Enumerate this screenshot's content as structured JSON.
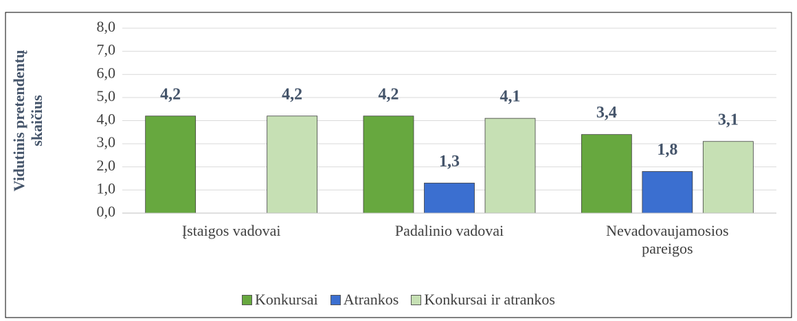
{
  "chart_data": {
    "type": "bar",
    "y_label": [
      "Vidutinis pretendentų",
      "skaičius"
    ],
    "categories": [
      "Įstaigos vadovai",
      "Padalinio vadovai",
      "Nevadovaujamosios pareigos"
    ],
    "series": [
      {
        "name": "Konkursai",
        "color": "#67a83f",
        "values": [
          4.2,
          4.2,
          3.4
        ],
        "value_labels": [
          "4,2",
          "4,2",
          "3,4"
        ]
      },
      {
        "name": "Atrankos",
        "color": "#3b6fd0",
        "values": [
          null,
          1.3,
          1.8
        ],
        "value_labels": [
          null,
          "1,3",
          "1,8"
        ]
      },
      {
        "name": "Konkursai ir atrankos",
        "color": "#c6e0b4",
        "values": [
          4.2,
          4.1,
          3.1
        ],
        "value_labels": [
          "4,2",
          "4,1",
          "3,1"
        ]
      }
    ],
    "ylim": [
      0,
      8
    ],
    "yticks": [
      {
        "value": 0,
        "label": "0,0"
      },
      {
        "value": 1,
        "label": "1,0"
      },
      {
        "value": 2,
        "label": "2,0"
      },
      {
        "value": 3,
        "label": "3,0"
      },
      {
        "value": 4,
        "label": "4,0"
      },
      {
        "value": 5,
        "label": "5,0"
      },
      {
        "value": 6,
        "label": "6,0"
      },
      {
        "value": 7,
        "label": "7,0"
      },
      {
        "value": 8,
        "label": "8,0"
      }
    ],
    "grid": true
  }
}
